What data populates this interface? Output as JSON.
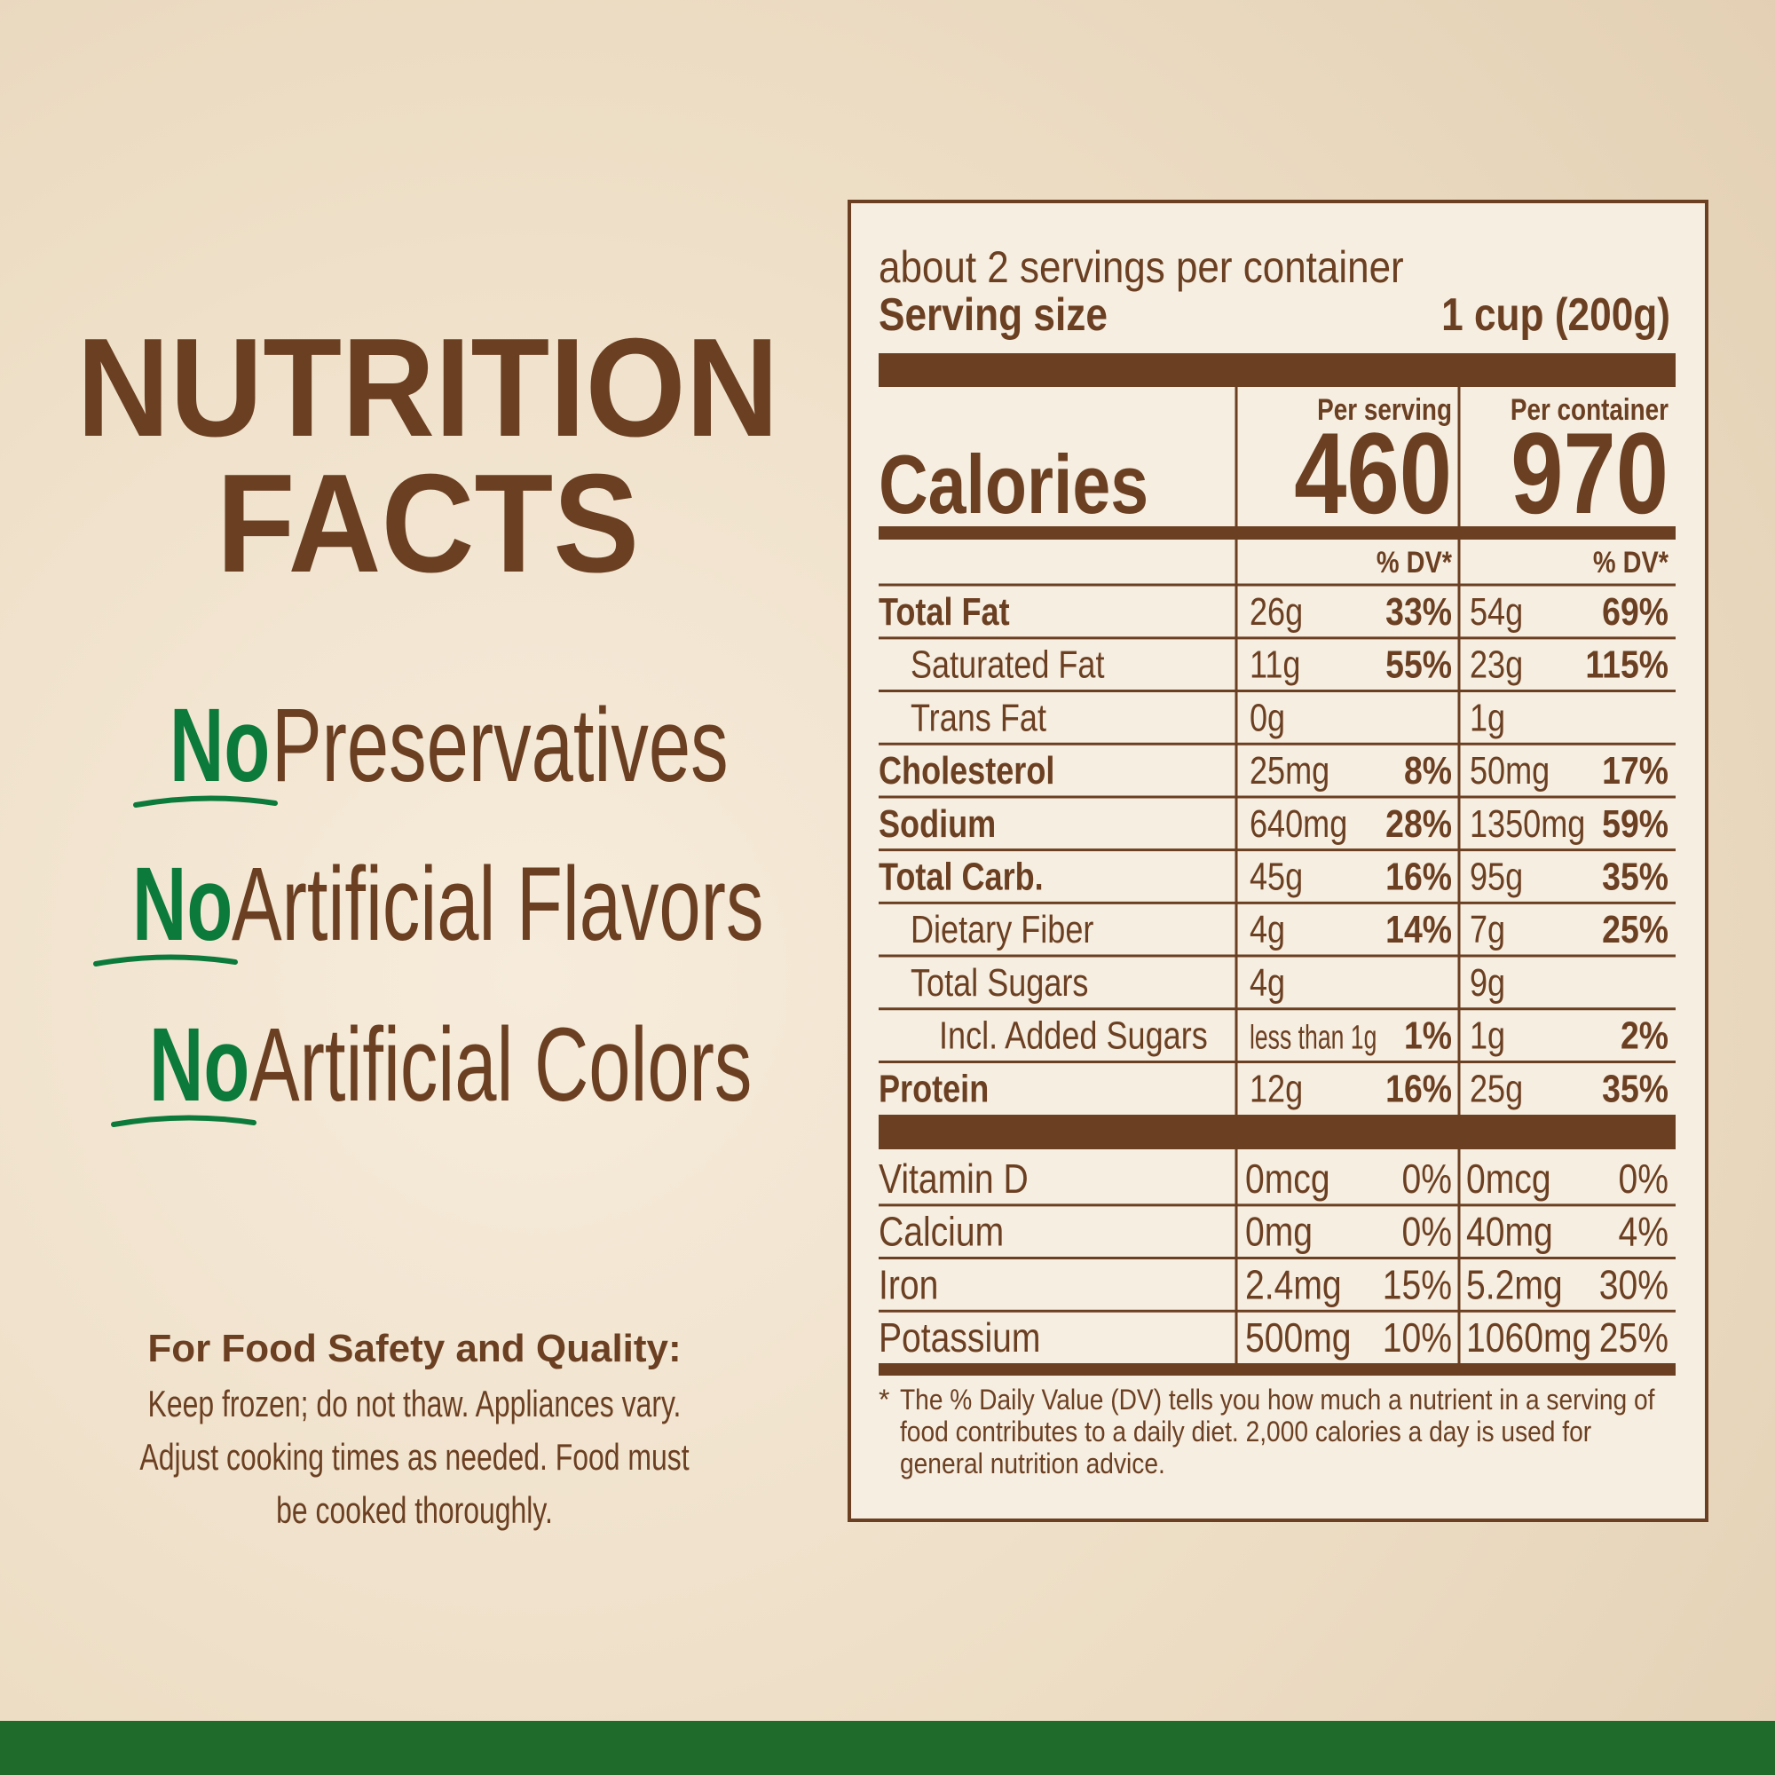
{
  "heading": [
    "NUTRITION",
    "FACTS"
  ],
  "claims": [
    {
      "no": "No",
      "text": "Preservatives"
    },
    {
      "no": "No",
      "text": "Artificial Flavors"
    },
    {
      "no": "No",
      "text": "Artificial Colors"
    }
  ],
  "safety": {
    "title": "For Food Safety and Quality:",
    "lines": [
      "Keep frozen; do not thaw. Appliances vary.",
      "Adjust cooking times as needed. Food must",
      "be cooked thoroughly."
    ]
  },
  "label": {
    "servings": "about 2 servings per container",
    "serving_size_label": "Serving size",
    "serving_size": "1 cup (200g)",
    "per_serving": "Per serving",
    "per_container": "Per container",
    "calories_label": "Calories",
    "calories": [
      460,
      970
    ],
    "dv_header": "% DV*",
    "nutrients": [
      {
        "name": "Total Fat",
        "bold": true,
        "level": 0,
        "serving": {
          "amount": "26g",
          "dv": "33%"
        },
        "container": {
          "amount": "54g",
          "dv": "69%"
        }
      },
      {
        "name": "Saturated Fat",
        "bold": false,
        "level": 1,
        "serving": {
          "amount": "11g",
          "dv": "55%"
        },
        "container": {
          "amount": "23g",
          "dv": "115%"
        }
      },
      {
        "name": "Trans Fat",
        "bold": false,
        "level": 1,
        "serving": {
          "amount": "0g"
        },
        "container": {
          "amount": "1g"
        }
      },
      {
        "name": "Cholesterol",
        "bold": true,
        "level": 0,
        "serving": {
          "amount": "25mg",
          "dv": "8%"
        },
        "container": {
          "amount": "50mg",
          "dv": "17%"
        }
      },
      {
        "name": "Sodium",
        "bold": true,
        "level": 0,
        "serving": {
          "amount": "640mg",
          "dv": "28%"
        },
        "container": {
          "amount": "1350mg",
          "dv": "59%"
        }
      },
      {
        "name": "Total Carb.",
        "bold": true,
        "level": 0,
        "serving": {
          "amount": "45g",
          "dv": "16%"
        },
        "container": {
          "amount": "95g",
          "dv": "35%"
        }
      },
      {
        "name": "Dietary Fiber",
        "bold": false,
        "level": 1,
        "serving": {
          "amount": "4g",
          "dv": "14%"
        },
        "container": {
          "amount": "7g",
          "dv": "25%"
        }
      },
      {
        "name": "Total Sugars",
        "bold": false,
        "level": 1,
        "serving": {
          "amount": "4g"
        },
        "container": {
          "amount": "9g"
        }
      },
      {
        "name": "Incl. Added Sugars",
        "bold": false,
        "level": 2,
        "serving": {
          "amount": "less than 1g",
          "dv": "1%"
        },
        "container": {
          "amount": "1g",
          "dv": "2%"
        }
      },
      {
        "name": "Protein",
        "bold": true,
        "level": 0,
        "serving": {
          "amount": "12g",
          "dv": "16%"
        },
        "container": {
          "amount": "25g",
          "dv": "35%"
        }
      }
    ],
    "vitamins": [
      {
        "name": "Vitamin D",
        "serving": {
          "amount": "0mcg",
          "dv": "0%"
        },
        "container": {
          "amount": "0mcg",
          "dv": "0%"
        }
      },
      {
        "name": "Calcium",
        "serving": {
          "amount": "0mg",
          "dv": "0%"
        },
        "container": {
          "amount": "40mg",
          "dv": "4%"
        }
      },
      {
        "name": "Iron",
        "serving": {
          "amount": "2.4mg",
          "dv": "15%"
        },
        "container": {
          "amount": "5.2mg",
          "dv": "30%"
        }
      },
      {
        "name": "Potassium",
        "serving": {
          "amount": "500mg",
          "dv": "10%"
        },
        "container": {
          "amount": "1060mg",
          "dv": "25%"
        }
      }
    ],
    "footnote_mark": "*",
    "footnote": [
      "The % Daily Value (DV) tells you how much a nutrient in a serving of",
      "food contributes to a daily diet. 2,000 calories a day is used for",
      "general nutrition advice."
    ]
  }
}
